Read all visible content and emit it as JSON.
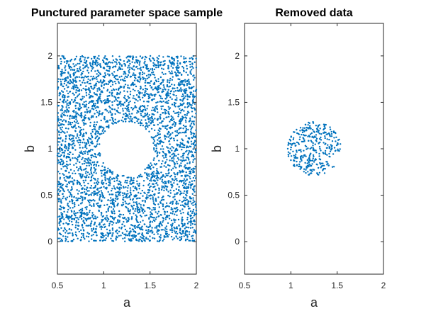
{
  "chart_data": [
    {
      "type": "scatter",
      "title": "Punctured parameter space sample",
      "xlabel": "a",
      "ylabel": "b",
      "xlim": [
        0.5,
        2
      ],
      "ylim": [
        -0.35,
        2.35
      ],
      "xticks": [
        "0.5",
        "1",
        "1.5",
        "2"
      ],
      "xtick_values": [
        0.5,
        1,
        1.5,
        2
      ],
      "yticks": [
        "0",
        "0.5",
        "1",
        "1.5",
        "2"
      ],
      "ytick_values": [
        0,
        0.5,
        1,
        1.5,
        2
      ],
      "sample_region": {
        "a": [
          0.5,
          2
        ],
        "b": [
          0,
          2
        ]
      },
      "hole": {
        "center": [
          1.25,
          1.0
        ],
        "radius": 0.29
      },
      "color": "#0072BD",
      "grid": false
    },
    {
      "type": "scatter",
      "title": "Removed data",
      "xlabel": "a",
      "ylabel": "b",
      "xlim": [
        0.5,
        2
      ],
      "ylim": [
        -0.35,
        2.35
      ],
      "xticks": [
        "0.5",
        "1",
        "1.5",
        "2"
      ],
      "xtick_values": [
        0.5,
        1,
        1.5,
        2
      ],
      "yticks": [
        "0",
        "0.5",
        "1",
        "1.5",
        "2"
      ],
      "ytick_values": [
        0,
        0.5,
        1,
        1.5,
        2
      ],
      "disk": {
        "center": [
          1.25,
          1.0
        ],
        "radius": 0.29
      },
      "color": "#0072BD",
      "grid": false
    }
  ]
}
